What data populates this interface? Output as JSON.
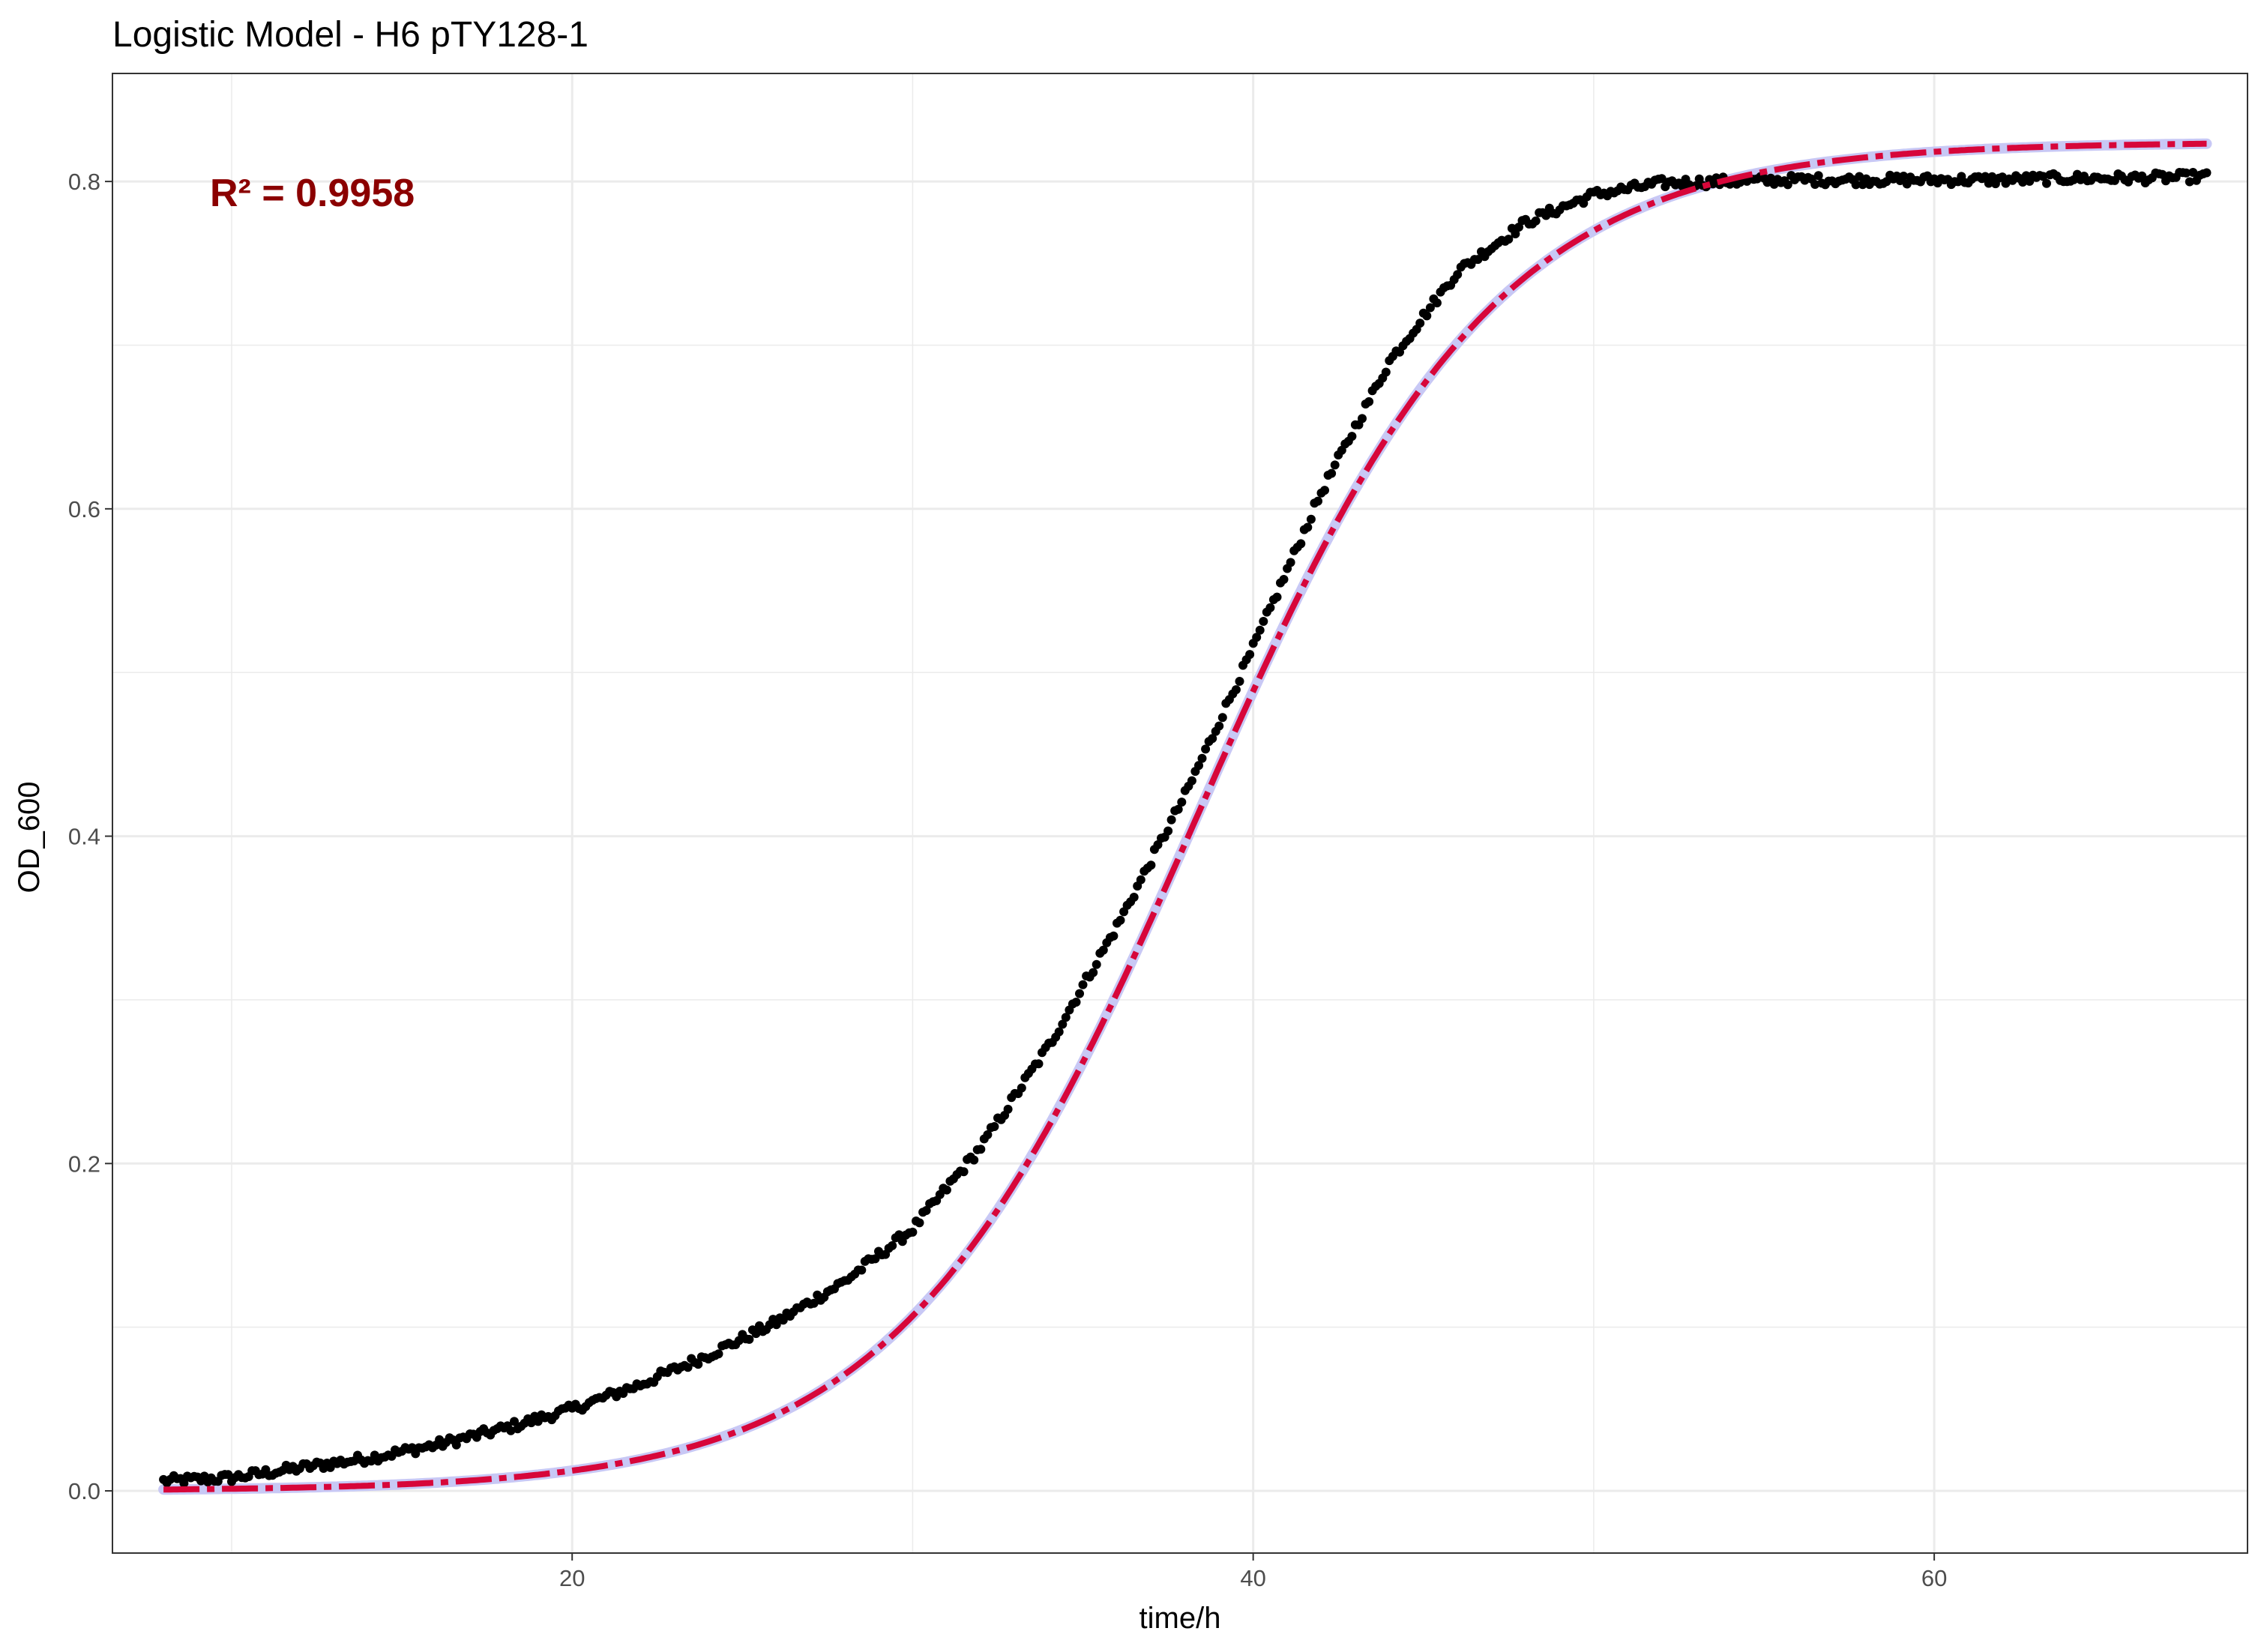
{
  "chart_data": {
    "type": "scatter",
    "title": "Logistic Model -  H6 pTY128-1",
    "xlabel": "time/h",
    "ylabel": "OD_600",
    "xlim": [
      6.5,
      69.2
    ],
    "ylim": [
      -0.038,
      0.866
    ],
    "x_ticks": [
      20,
      40,
      60
    ],
    "x_tick_labels": [
      "20",
      "40",
      "60"
    ],
    "y_ticks": [
      0.0,
      0.2,
      0.4,
      0.6,
      0.8
    ],
    "y_tick_labels": [
      "0.0",
      "0.2",
      "0.4",
      "0.6",
      "0.8"
    ],
    "grid": true,
    "legend": "none",
    "annotation": {
      "text": "R² = 0.9958",
      "color": "#8b0000"
    },
    "colors": {
      "points": "#000000",
      "fit_band": "#c8c8f5",
      "fit_line": "#d7063a",
      "grid": "#ebebeb",
      "panel_border": "#333333"
    },
    "observed": {
      "x_range": [
        8.0,
        68.0
      ],
      "anchors": [
        [
          8,
          0.006
        ],
        [
          10,
          0.008
        ],
        [
          12,
          0.014
        ],
        [
          14,
          0.02
        ],
        [
          16,
          0.028
        ],
        [
          18,
          0.038
        ],
        [
          20,
          0.05
        ],
        [
          22,
          0.065
        ],
        [
          24,
          0.083
        ],
        [
          26,
          0.103
        ],
        [
          28,
          0.128
        ],
        [
          30,
          0.16
        ],
        [
          32,
          0.21
        ],
        [
          34,
          0.272
        ],
        [
          36,
          0.345
        ],
        [
          38,
          0.425
        ],
        [
          40,
          0.515
        ],
        [
          42,
          0.61
        ],
        [
          44,
          0.69
        ],
        [
          46,
          0.745
        ],
        [
          48,
          0.775
        ],
        [
          50,
          0.792
        ],
        [
          52,
          0.799
        ],
        [
          54,
          0.8
        ],
        [
          56,
          0.801
        ],
        [
          58,
          0.801
        ],
        [
          60,
          0.801
        ],
        [
          62,
          0.801
        ],
        [
          64,
          0.802
        ],
        [
          66,
          0.802
        ],
        [
          68,
          0.803
        ]
      ]
    },
    "fitted": {
      "model": "logistic",
      "K": 0.824,
      "r": 0.228,
      "t_mid": 38.35,
      "x_range": [
        8.0,
        68.0
      ]
    }
  }
}
